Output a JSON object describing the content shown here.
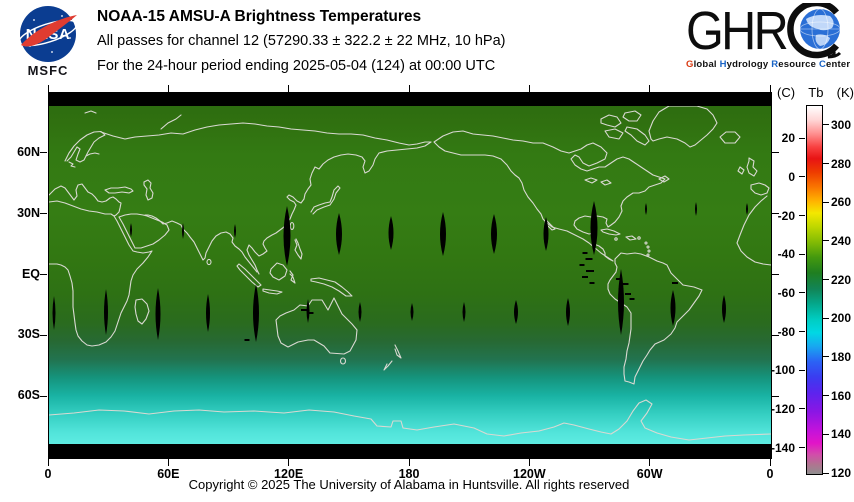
{
  "header": {
    "nasa": {
      "wordmark": "NASA",
      "msfc": "MSFC"
    },
    "title": "NOAA-15 AMSU-A Brightness Temperatures",
    "subtitle1": "All passes for channel 12 (57290.33 ± 322.2 ± 22 MHz, 10 hPa)",
    "subtitle2": "For the 24-hour period ending 2025-05-04 (124) at 00:00 UTC",
    "ghrc": {
      "monogram": "GHR",
      "tagline": [
        {
          "head": "G",
          "head_color": "#d93a12",
          "rest": "lobal"
        },
        {
          "head": "H",
          "head_color": "#1863c6",
          "rest": "ydrology"
        },
        {
          "head": "R",
          "head_color": "#1863c6",
          "rest": "esource"
        },
        {
          "head": "C",
          "head_color": "#1863c6",
          "rest": "enter"
        }
      ]
    }
  },
  "map": {
    "lon_ticks": [
      {
        "label": "0",
        "deg": 0
      },
      {
        "label": "60E",
        "deg": 60
      },
      {
        "label": "120E",
        "deg": 120
      },
      {
        "label": "180",
        "deg": 180
      },
      {
        "label": "120W",
        "deg": 240
      },
      {
        "label": "60W",
        "deg": 300
      },
      {
        "label": "0",
        "deg": 360
      }
    ],
    "lat_ticks": [
      {
        "label": "60N",
        "lat": 60
      },
      {
        "label": "30N",
        "lat": 30
      },
      {
        "label": "EQ",
        "lat": 0
      },
      {
        "label": "30S",
        "lat": -30
      },
      {
        "label": "60S",
        "lat": -60
      }
    ],
    "gaps": {
      "north_row": [
        [
          82,
          137,
          2,
          7
        ],
        [
          134,
          138,
          2,
          8
        ],
        [
          186,
          138,
          2,
          7
        ],
        [
          238,
          143,
          7,
          30
        ],
        [
          290,
          141,
          6,
          21
        ],
        [
          342,
          140,
          5,
          17
        ],
        [
          394,
          141,
          6,
          22
        ],
        [
          445,
          141,
          6,
          20
        ],
        [
          497,
          141,
          5,
          17
        ],
        [
          545,
          135,
          7,
          27
        ],
        [
          597,
          116,
          2,
          6
        ],
        [
          647,
          116,
          2,
          7
        ],
        [
          698,
          116,
          2,
          6
        ]
      ],
      "south_row": [
        [
          5,
          220,
          3,
          17
        ],
        [
          57,
          219,
          4,
          23
        ],
        [
          109,
          221,
          5,
          26
        ],
        [
          159,
          220,
          4,
          19
        ],
        [
          207,
          220,
          6,
          29
        ],
        [
          259,
          218,
          3,
          12
        ],
        [
          311,
          219,
          3,
          10
        ],
        [
          363,
          219,
          3,
          9
        ],
        [
          415,
          219,
          3,
          10
        ],
        [
          467,
          219,
          4,
          12
        ],
        [
          519,
          219,
          4,
          14
        ],
        [
          572,
          209,
          6,
          33
        ],
        [
          624,
          215,
          5,
          18
        ],
        [
          675,
          216,
          4,
          14
        ]
      ],
      "dashes": [
        [
          536,
          160,
          5,
          2
        ],
        [
          540,
          166,
          7,
          2
        ],
        [
          533,
          172,
          5,
          2
        ],
        [
          541,
          178,
          8,
          2
        ],
        [
          536,
          184,
          6,
          2
        ],
        [
          543,
          190,
          5,
          2
        ],
        [
          570,
          186,
          6,
          2
        ],
        [
          576,
          191,
          7,
          2
        ],
        [
          572,
          196,
          5,
          2
        ],
        [
          579,
          201,
          6,
          2
        ],
        [
          583,
          206,
          5,
          2
        ],
        [
          626,
          190,
          6,
          2
        ],
        [
          255,
          217,
          6,
          2
        ],
        [
          262,
          220,
          5,
          2
        ],
        [
          198,
          247,
          5,
          2
        ]
      ]
    }
  },
  "colorbar": {
    "label_c": "(C)",
    "label_tb": "Tb",
    "label_k": "(K)",
    "k_scale": [
      300,
      280,
      260,
      240,
      220,
      200,
      180,
      160,
      140,
      120
    ],
    "c_scale": [
      20,
      0,
      -20,
      -40,
      -60,
      -80,
      -100,
      -120,
      -140
    ],
    "top_k": 310.3,
    "bottom_k": 120,
    "gradient": [
      [
        310.3,
        "#ffffff"
      ],
      [
        303,
        "#ffd6d6"
      ],
      [
        296,
        "#ff9090"
      ],
      [
        289,
        "#f84040"
      ],
      [
        283,
        "#e81414"
      ],
      [
        276,
        "#ee3c00"
      ],
      [
        268,
        "#fa7800"
      ],
      [
        261,
        "#ffb400"
      ],
      [
        255,
        "#f4e800"
      ],
      [
        248,
        "#c0d800"
      ],
      [
        240,
        "#84bc04"
      ],
      [
        232,
        "#44990e"
      ],
      [
        224,
        "#1f7f20"
      ],
      [
        216,
        "#128455"
      ],
      [
        208,
        "#04a88c"
      ],
      [
        200,
        "#00cdc2"
      ],
      [
        193,
        "#00d8e4"
      ],
      [
        186,
        "#18a8f0"
      ],
      [
        178,
        "#2b62f5"
      ],
      [
        170,
        "#3b3cf0"
      ],
      [
        162,
        "#5c24ee"
      ],
      [
        152,
        "#8c16e4"
      ],
      [
        143,
        "#c013dc"
      ],
      [
        136,
        "#e214c8"
      ],
      [
        130,
        "#d24daa"
      ],
      [
        125,
        "#b07490"
      ],
      [
        120,
        "#8f8f8f"
      ]
    ]
  },
  "footer": {
    "copyright": "Copyright © 2025 The University of Alabama in Huntsville.  All rights reserved"
  },
  "chart_data": {
    "type": "heatmap",
    "title": "NOAA-15 AMSU-A Brightness Temperatures",
    "subtitle": "All passes for channel 12 (57290.33 ± 322.2 ± 22 MHz, 10 hPa)",
    "period": "24-hour period ending 2025-05-04 (124) at 00:00 UTC",
    "projection": "equirectangular world map, longitude 0 eastward through 180 to 0 (Greenwich at both edges)",
    "xlabel_ticks": [
      "0",
      "60E",
      "120E",
      "180",
      "120W",
      "60W",
      "0"
    ],
    "ylabel_ticks": [
      "60N",
      "30N",
      "EQ",
      "30S",
      "60S"
    ],
    "colorbar": {
      "left_scale_label": "(C)",
      "quantity_label": "Tb",
      "right_scale_label": "(K)",
      "kelvin_ticks": [
        300,
        280,
        260,
        240,
        220,
        200,
        180,
        160,
        140,
        120
      ],
      "celsius_ticks": [
        20,
        0,
        -20,
        -40,
        -60,
        -80,
        -100,
        -120,
        -140
      ],
      "range_k": [
        120,
        310
      ]
    },
    "approx_brightness_temperature_by_latitude_k": [
      {
        "lat": "80N",
        "tb_k": 230
      },
      {
        "lat": "60N",
        "tb_k": 235
      },
      {
        "lat": "30N",
        "tb_k": 236
      },
      {
        "lat": "EQ",
        "tb_k": 233
      },
      {
        "lat": "15S",
        "tb_k": 230
      },
      {
        "lat": "30S",
        "tb_k": 226
      },
      {
        "lat": "45S",
        "tb_k": 218
      },
      {
        "lat": "60S",
        "tb_k": 206
      },
      {
        "lat": "75S",
        "tb_k": 198
      }
    ],
    "notable_features": [
      "black lens-shaped gaps between orbit swaths in two rows near 20N and 18S",
      "larger black gap streaks near 120E/20N and 90W/25N with scattered black dashes over northern South America",
      "black no-data strips along top and bottom map edges",
      "cold cyan band (~195-205 K) over the Antarctic region, green (~230-237 K) elsewhere"
    ]
  }
}
